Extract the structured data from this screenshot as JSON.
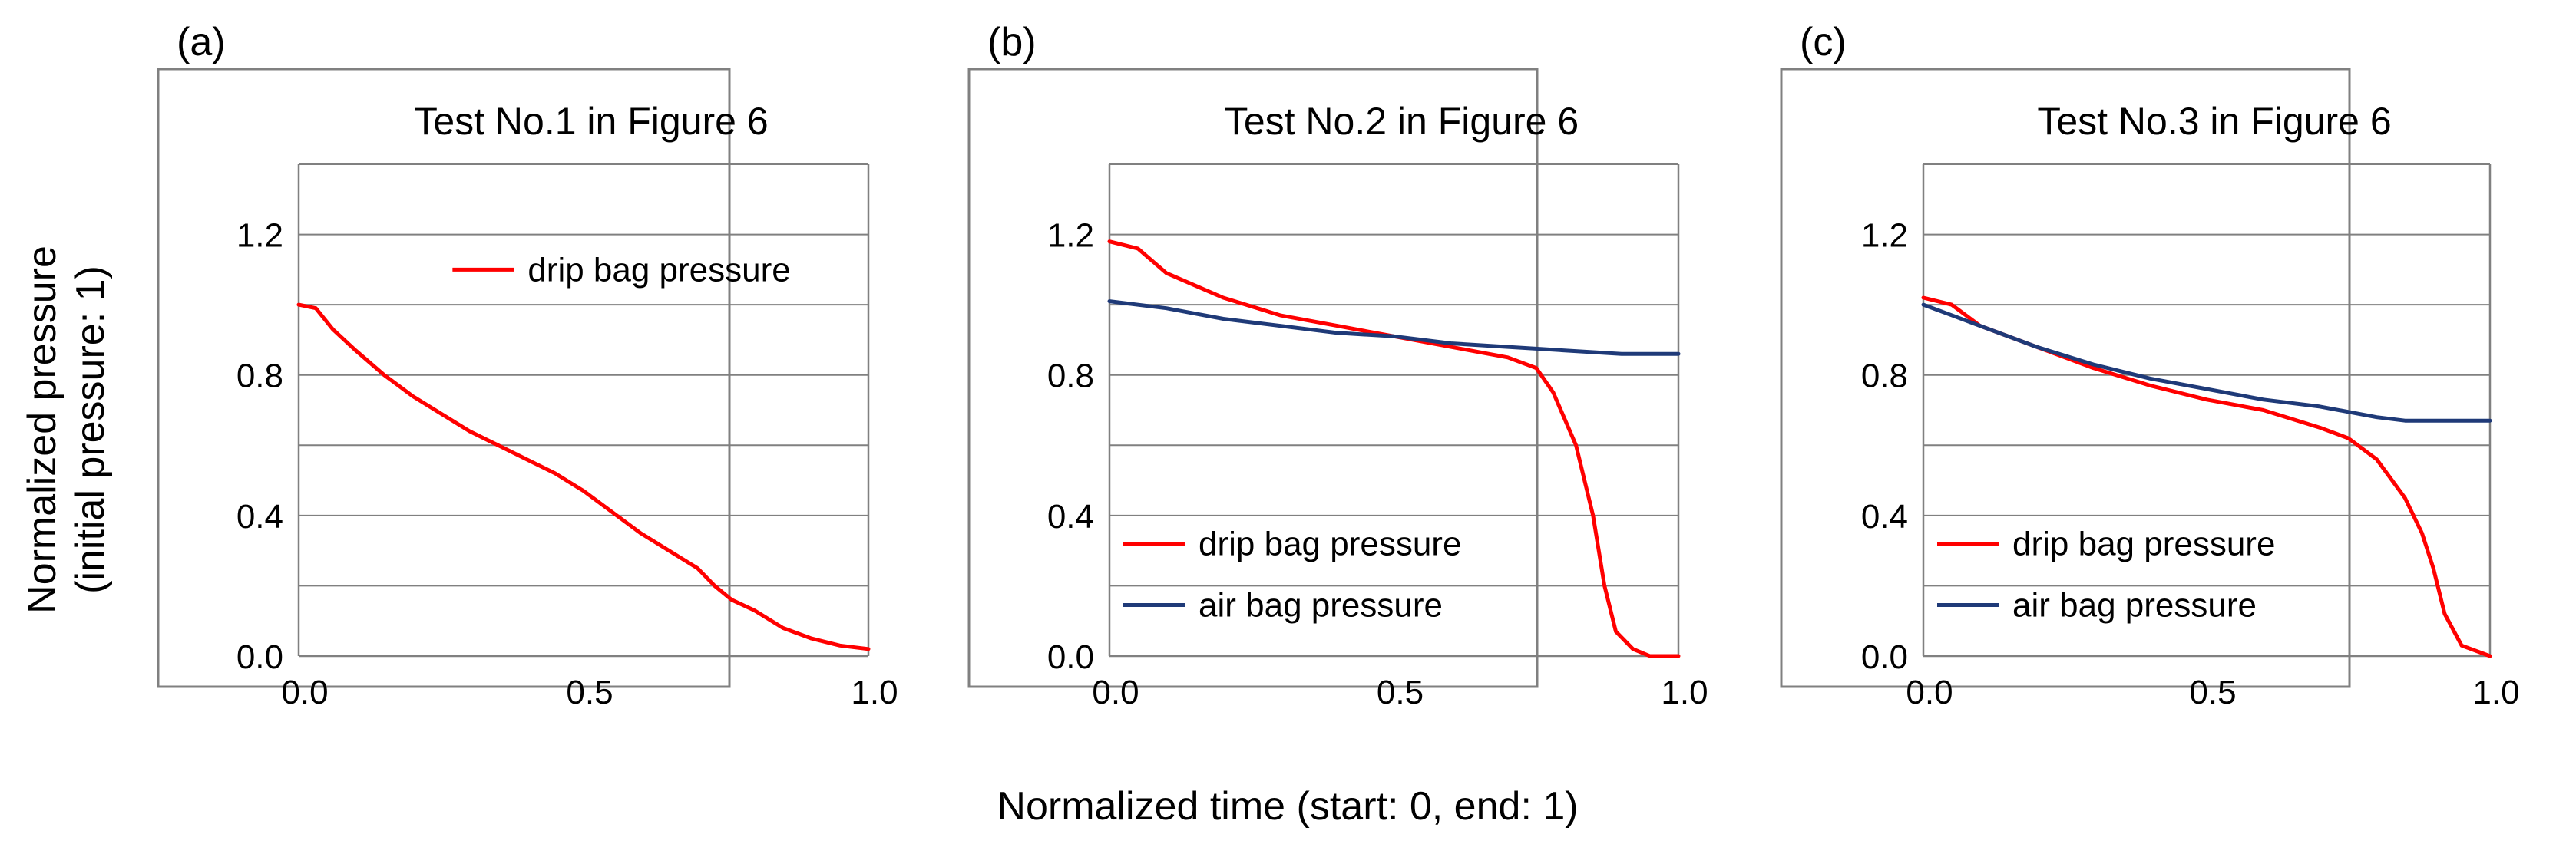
{
  "figure": {
    "ylabel_line1": "Normalized  pressure",
    "ylabel_line2": "(initial pressure: 1)",
    "xlabel": "Normalized  time (start: 0, end: 1)"
  },
  "colors": {
    "drip": "#ff0000",
    "air": "#1f3a78",
    "grid": "#808080",
    "frame": "#808080"
  },
  "chart_data": [
    {
      "type": "line",
      "panel_label": "(a)",
      "title": "Test No.1 in Figure 6",
      "xlim": [
        0,
        1
      ],
      "ylim": [
        0,
        1.4
      ],
      "x_ticks": [
        "0.0",
        "0.5",
        "1.0"
      ],
      "y_ticks": [
        "0.0",
        "0.4",
        "0.8",
        "1.2"
      ],
      "gridlines": [
        0.2,
        0.4,
        0.6,
        0.8,
        1.0,
        1.2,
        1.4
      ],
      "legend_position": "top-right",
      "series": [
        {
          "name": "drip bag pressure",
          "color_key": "drip",
          "points": [
            [
              0,
              1.0
            ],
            [
              0.03,
              0.99
            ],
            [
              0.06,
              0.93
            ],
            [
              0.1,
              0.87
            ],
            [
              0.15,
              0.8
            ],
            [
              0.2,
              0.74
            ],
            [
              0.25,
              0.69
            ],
            [
              0.3,
              0.64
            ],
            [
              0.35,
              0.6
            ],
            [
              0.4,
              0.56
            ],
            [
              0.45,
              0.52
            ],
            [
              0.5,
              0.47
            ],
            [
              0.55,
              0.41
            ],
            [
              0.6,
              0.35
            ],
            [
              0.65,
              0.3
            ],
            [
              0.7,
              0.25
            ],
            [
              0.73,
              0.2
            ],
            [
              0.76,
              0.16
            ],
            [
              0.8,
              0.13
            ],
            [
              0.85,
              0.08
            ],
            [
              0.9,
              0.05
            ],
            [
              0.95,
              0.03
            ],
            [
              1.0,
              0.02
            ]
          ]
        }
      ]
    },
    {
      "type": "line",
      "panel_label": "(b)",
      "title": "Test No.2 in Figure 6",
      "xlim": [
        0,
        1
      ],
      "ylim": [
        0,
        1.4
      ],
      "x_ticks": [
        "0.0",
        "0.5",
        "1.0"
      ],
      "y_ticks": [
        "0.0",
        "0.4",
        "0.8",
        "1.2"
      ],
      "gridlines": [
        0.2,
        0.4,
        0.6,
        0.8,
        1.0,
        1.2,
        1.4
      ],
      "legend_position": "bottom-left",
      "series": [
        {
          "name": "drip bag pressure",
          "color_key": "drip",
          "points": [
            [
              0,
              1.18
            ],
            [
              0.05,
              1.16
            ],
            [
              0.1,
              1.09
            ],
            [
              0.2,
              1.02
            ],
            [
              0.3,
              0.97
            ],
            [
              0.4,
              0.94
            ],
            [
              0.5,
              0.91
            ],
            [
              0.6,
              0.88
            ],
            [
              0.7,
              0.85
            ],
            [
              0.75,
              0.82
            ],
            [
              0.78,
              0.75
            ],
            [
              0.82,
              0.6
            ],
            [
              0.85,
              0.4
            ],
            [
              0.87,
              0.2
            ],
            [
              0.89,
              0.07
            ],
            [
              0.92,
              0.02
            ],
            [
              0.95,
              0.0
            ],
            [
              1.0,
              0.0
            ]
          ]
        },
        {
          "name": "air bag pressure",
          "color_key": "air",
          "points": [
            [
              0,
              1.01
            ],
            [
              0.1,
              0.99
            ],
            [
              0.2,
              0.96
            ],
            [
              0.3,
              0.94
            ],
            [
              0.4,
              0.92
            ],
            [
              0.5,
              0.91
            ],
            [
              0.6,
              0.89
            ],
            [
              0.7,
              0.88
            ],
            [
              0.8,
              0.87
            ],
            [
              0.9,
              0.86
            ],
            [
              1.0,
              0.86
            ]
          ]
        }
      ]
    },
    {
      "type": "line",
      "panel_label": "(c)",
      "title": "Test No.3 in Figure 6",
      "xlim": [
        0,
        1
      ],
      "ylim": [
        0,
        1.4
      ],
      "x_ticks": [
        "0.0",
        "0.5",
        "1.0"
      ],
      "y_ticks": [
        "0.0",
        "0.4",
        "0.8",
        "1.2"
      ],
      "gridlines": [
        0.2,
        0.4,
        0.6,
        0.8,
        1.0,
        1.2,
        1.4
      ],
      "legend_position": "bottom-left",
      "series": [
        {
          "name": "drip bag pressure",
          "color_key": "drip",
          "points": [
            [
              0,
              1.02
            ],
            [
              0.05,
              1.0
            ],
            [
              0.1,
              0.94
            ],
            [
              0.2,
              0.88
            ],
            [
              0.3,
              0.82
            ],
            [
              0.4,
              0.77
            ],
            [
              0.5,
              0.73
            ],
            [
              0.6,
              0.7
            ],
            [
              0.7,
              0.65
            ],
            [
              0.75,
              0.62
            ],
            [
              0.8,
              0.56
            ],
            [
              0.85,
              0.45
            ],
            [
              0.88,
              0.35
            ],
            [
              0.9,
              0.25
            ],
            [
              0.92,
              0.12
            ],
            [
              0.95,
              0.03
            ],
            [
              1.0,
              0.0
            ]
          ]
        },
        {
          "name": "air bag pressure",
          "color_key": "air",
          "points": [
            [
              0,
              1.0
            ],
            [
              0.1,
              0.94
            ],
            [
              0.2,
              0.88
            ],
            [
              0.3,
              0.83
            ],
            [
              0.4,
              0.79
            ],
            [
              0.5,
              0.76
            ],
            [
              0.6,
              0.73
            ],
            [
              0.7,
              0.71
            ],
            [
              0.8,
              0.68
            ],
            [
              0.85,
              0.67
            ],
            [
              1.0,
              0.67
            ]
          ]
        }
      ]
    }
  ]
}
